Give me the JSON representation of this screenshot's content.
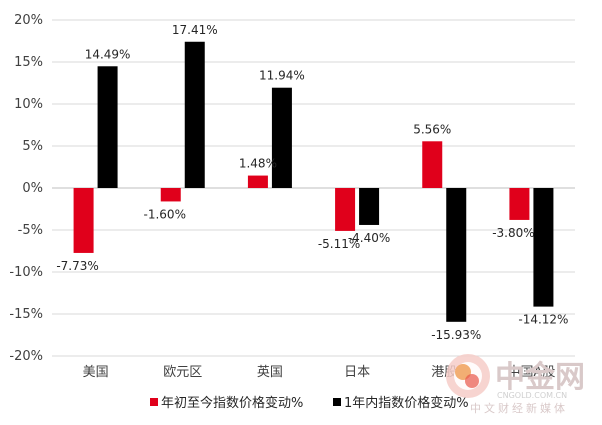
{
  "chart_data": {
    "type": "bar",
    "categories": [
      "美国",
      "欧元区",
      "英国",
      "日本",
      "港股",
      "中国A股"
    ],
    "series": [
      {
        "name": "年初至今指数价格变动%",
        "color": "#e0001b",
        "values": [
          -7.73,
          -1.6,
          1.48,
          -5.11,
          5.56,
          -3.8
        ],
        "labels": [
          "-7.73%",
          "-1.60%",
          "1.48%",
          "-5.11%",
          "5.56%",
          "-3.80%"
        ]
      },
      {
        "name": "1年内指数价格变动%",
        "color": "#000000",
        "values": [
          14.49,
          17.41,
          11.94,
          -4.4,
          -15.93,
          -14.12
        ],
        "labels": [
          "14.49%",
          "17.41%",
          "11.94%",
          "-4.40%",
          "-15.93%",
          "-14.12%"
        ]
      }
    ],
    "ylim": [
      -20,
      20
    ],
    "yticks": [
      20,
      15,
      10,
      5,
      0,
      -5,
      -10,
      -15,
      -20
    ],
    "ytick_labels": [
      "20%",
      "15%",
      "10%",
      "5%",
      "0%",
      "-5%",
      "-10%",
      "-15%",
      "-20%"
    ],
    "grid": true,
    "legend_position": "bottom"
  },
  "watermark": {
    "text": "中金网",
    "subtitle": "中文财经新媒体",
    "url": "CNGOLD.COM.CN",
    "logo": "cngold-logo"
  }
}
